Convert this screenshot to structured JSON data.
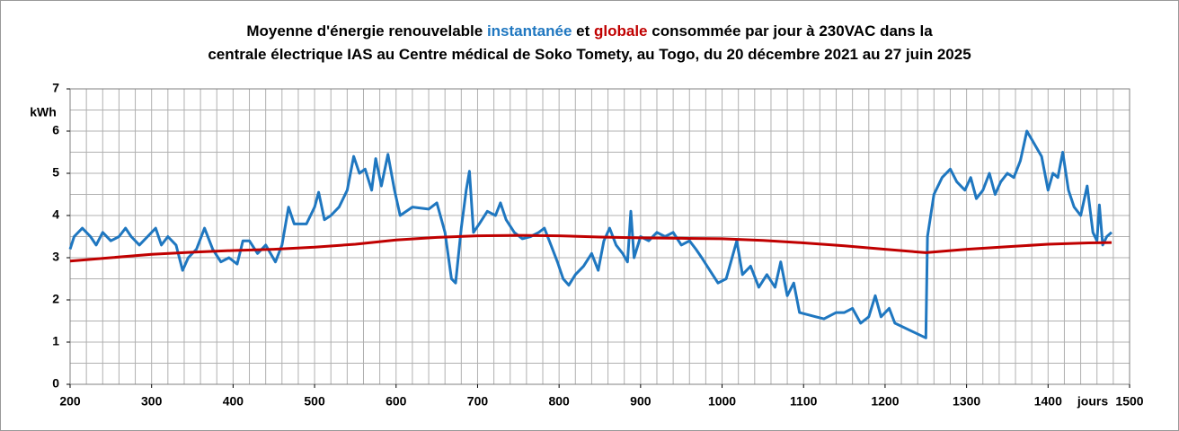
{
  "chart_data": {
    "type": "line",
    "title_lines": [
      [
        {
          "text": "Moyenne d'énergie renouvelable ",
          "color": "#000000"
        },
        {
          "text": "instantanée",
          "color": "#1f77c0"
        },
        {
          "text": " et ",
          "color": "#000000"
        },
        {
          "text": "globale",
          "color": "#c00000"
        },
        {
          "text": " consommée par jour à 230VAC dans la",
          "color": "#000000"
        }
      ],
      [
        {
          "text": "centrale électrique IAS au Centre médical de Soko Tomety, au Togo, du 20 décembre 2021 au 27 juin 2025",
          "color": "#000000"
        }
      ]
    ],
    "y_unit": "kWh",
    "x_unit": "jours",
    "xlim": [
      200,
      1500
    ],
    "ylim": [
      0,
      7
    ],
    "xticks": [
      200,
      300,
      400,
      500,
      600,
      700,
      800,
      900,
      1000,
      1100,
      1200,
      1300,
      1400,
      1500
    ],
    "yticks": [
      0,
      1,
      2,
      3,
      4,
      5,
      6,
      7
    ],
    "x_grid": [
      200,
      220,
      240,
      260,
      280,
      300,
      320,
      340,
      360,
      380,
      400,
      420,
      440,
      460,
      480,
      500,
      520,
      540,
      560,
      580,
      600,
      620,
      640,
      660,
      680,
      700,
      720,
      740,
      760,
      780,
      800,
      820,
      840,
      860,
      880,
      900,
      920,
      940,
      960,
      980,
      1000,
      1020,
      1040,
      1060,
      1080,
      1100,
      1120,
      1140,
      1160,
      1180,
      1200,
      1220,
      1240,
      1260,
      1280,
      1300,
      1320,
      1340,
      1360,
      1380,
      1400,
      1420,
      1440,
      1460,
      1480,
      1500
    ],
    "y_grid": [
      0,
      0.5,
      1,
      1.5,
      2,
      2.5,
      3,
      3.5,
      4,
      4.5,
      5,
      5.5,
      6,
      6.5,
      7
    ],
    "series": [
      {
        "color": "#1f77c0",
        "x": [
          200,
          205,
          215,
          225,
          232,
          240,
          250,
          260,
          268,
          275,
          285,
          295,
          305,
          312,
          320,
          330,
          338,
          345,
          355,
          365,
          375,
          385,
          395,
          405,
          412,
          420,
          430,
          440,
          452,
          460,
          468,
          475,
          490,
          500,
          505,
          512,
          520,
          530,
          540,
          548,
          555,
          562,
          570,
          575,
          582,
          590,
          598,
          605,
          620,
          640,
          650,
          660,
          668,
          673,
          680,
          686,
          690,
          695,
          702,
          712,
          722,
          728,
          735,
          745,
          755,
          765,
          775,
          782,
          790,
          798,
          805,
          812,
          820,
          830,
          840,
          848,
          855,
          862,
          870,
          878,
          884,
          888,
          892,
          900,
          910,
          920,
          930,
          940,
          950,
          960,
          968,
          975,
          985,
          995,
          1005,
          1018,
          1025,
          1035,
          1045,
          1055,
          1065,
          1072,
          1080,
          1088,
          1095,
          1105,
          1115,
          1125,
          1140,
          1150,
          1160,
          1170,
          1180,
          1188,
          1195,
          1205,
          1212,
          1250,
          1252,
          1260,
          1270,
          1280,
          1288,
          1298,
          1305,
          1312,
          1320,
          1328,
          1335,
          1342,
          1350,
          1358,
          1366,
          1374,
          1380,
          1386,
          1392,
          1400,
          1406,
          1412,
          1418,
          1425,
          1432,
          1440,
          1448,
          1455,
          1460,
          1463,
          1467,
          1472,
          1478
        ],
        "values": [
          3.2,
          3.5,
          3.7,
          3.5,
          3.3,
          3.6,
          3.4,
          3.5,
          3.7,
          3.5,
          3.3,
          3.5,
          3.7,
          3.3,
          3.5,
          3.3,
          2.7,
          3.0,
          3.2,
          3.7,
          3.2,
          2.9,
          3.0,
          2.85,
          3.4,
          3.4,
          3.1,
          3.3,
          2.9,
          3.3,
          4.2,
          3.8,
          3.8,
          4.2,
          4.55,
          3.9,
          4.0,
          4.2,
          4.6,
          5.4,
          5.0,
          5.1,
          4.6,
          5.35,
          4.7,
          5.45,
          4.6,
          4.0,
          4.2,
          4.15,
          4.3,
          3.6,
          2.5,
          2.4,
          3.7,
          4.6,
          5.05,
          3.6,
          3.8,
          4.1,
          4.0,
          4.3,
          3.9,
          3.6,
          3.45,
          3.5,
          3.6,
          3.7,
          3.3,
          2.9,
          2.5,
          2.35,
          2.6,
          2.8,
          3.1,
          2.7,
          3.4,
          3.7,
          3.3,
          3.1,
          2.9,
          4.1,
          3.0,
          3.5,
          3.4,
          3.6,
          3.5,
          3.6,
          3.3,
          3.4,
          3.2,
          3.0,
          2.7,
          2.4,
          2.5,
          3.4,
          2.6,
          2.8,
          2.3,
          2.6,
          2.3,
          2.9,
          2.1,
          2.4,
          1.7,
          1.65,
          1.6,
          1.55,
          1.7,
          1.7,
          1.8,
          1.45,
          1.6,
          2.1,
          1.6,
          1.8,
          1.45,
          1.1,
          3.5,
          4.5,
          4.9,
          5.1,
          4.8,
          4.6,
          4.9,
          4.4,
          4.6,
          5.0,
          4.5,
          4.8,
          5.0,
          4.9,
          5.3,
          6.0,
          5.8,
          5.6,
          5.4,
          4.6,
          5.0,
          4.9,
          5.5,
          4.6,
          4.2,
          4.0,
          4.7,
          3.6,
          3.4,
          4.25,
          3.3,
          3.5,
          3.6
        ]
      },
      {
        "color": "#c00000",
        "x": [
          200,
          250,
          300,
          350,
          400,
          450,
          500,
          550,
          600,
          650,
          700,
          750,
          800,
          850,
          900,
          950,
          1000,
          1050,
          1100,
          1150,
          1200,
          1250,
          1300,
          1350,
          1400,
          1450,
          1478
        ],
        "values": [
          2.92,
          3.0,
          3.08,
          3.13,
          3.17,
          3.2,
          3.25,
          3.32,
          3.42,
          3.48,
          3.52,
          3.53,
          3.52,
          3.49,
          3.47,
          3.46,
          3.45,
          3.41,
          3.35,
          3.28,
          3.2,
          3.12,
          3.2,
          3.26,
          3.32,
          3.35,
          3.36
        ]
      }
    ]
  }
}
